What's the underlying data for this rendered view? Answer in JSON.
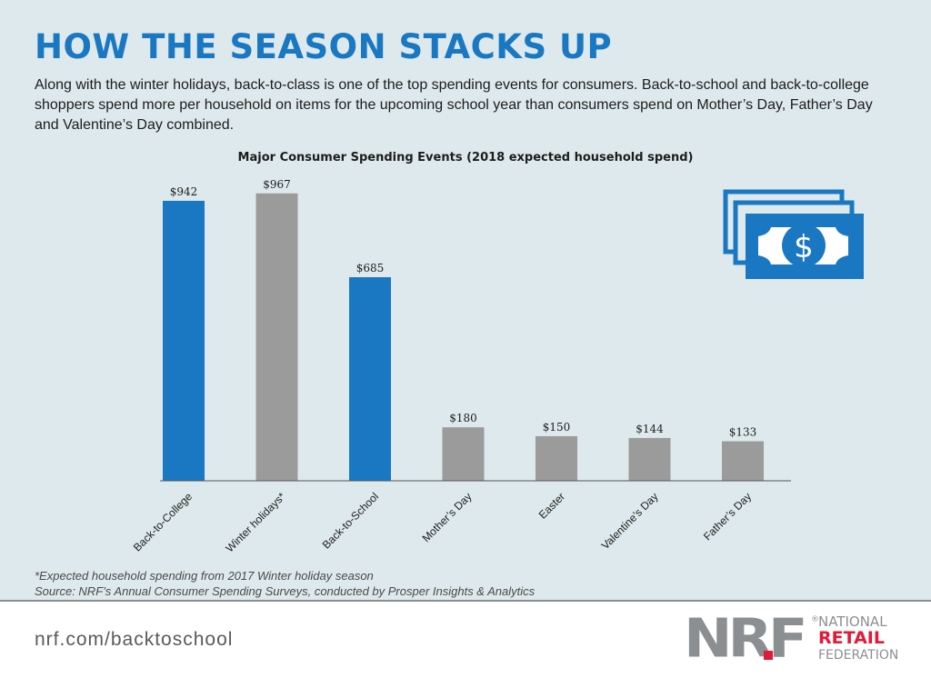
{
  "header": {
    "title": "HOW THE SEASON STACKS UP",
    "intro": "Along with the winter holidays, back-to-class is one of the top spending events for consumers. Back-to-school and back-to-college shoppers spend more per household on items for the upcoming school year than consumers spend on Mother’s Day, Father’s Day and Valentine’s Day combined."
  },
  "colors": {
    "blue": "#1a78c2",
    "gray": "#9b9b9b",
    "panel": "#dde9ec",
    "logo_gray": "#8c8f92",
    "logo_red": "#e31937"
  },
  "chart_data": {
    "type": "bar",
    "title": "Major Consumer Spending Events (2018 expected household spend)",
    "xlabel": "",
    "ylabel": "",
    "ylim": [
      0,
      1100
    ],
    "grid": false,
    "categories": [
      "Back-to-College",
      "Winter holidays*",
      "Back-to-School",
      "Mother’s Day",
      "Easter",
      "Valentine’s Day",
      "Father’s Day"
    ],
    "values": [
      942,
      967,
      685,
      180,
      150,
      144,
      133
    ],
    "data_labels": [
      "$942",
      "$967",
      "$685",
      "$180",
      "$150",
      "$144",
      "$133"
    ],
    "bar_colors": [
      "blue",
      "gray",
      "blue",
      "gray",
      "gray",
      "gray",
      "gray"
    ]
  },
  "icon": {
    "name": "money-bills-icon",
    "glyph": "$"
  },
  "footnotes": {
    "note": "*Expected household spending from 2017 Winter holiday season",
    "source": "Source: NRF’s Annual Consumer Spending Surveys, conducted by Prosper Insights & Analytics"
  },
  "footer": {
    "url": "nrf.com/backtoschool",
    "logo": {
      "letters": "NRF",
      "line1": "NATIONAL",
      "line2": "RETAIL",
      "line3": "FEDERATION",
      "reg": "®"
    }
  }
}
